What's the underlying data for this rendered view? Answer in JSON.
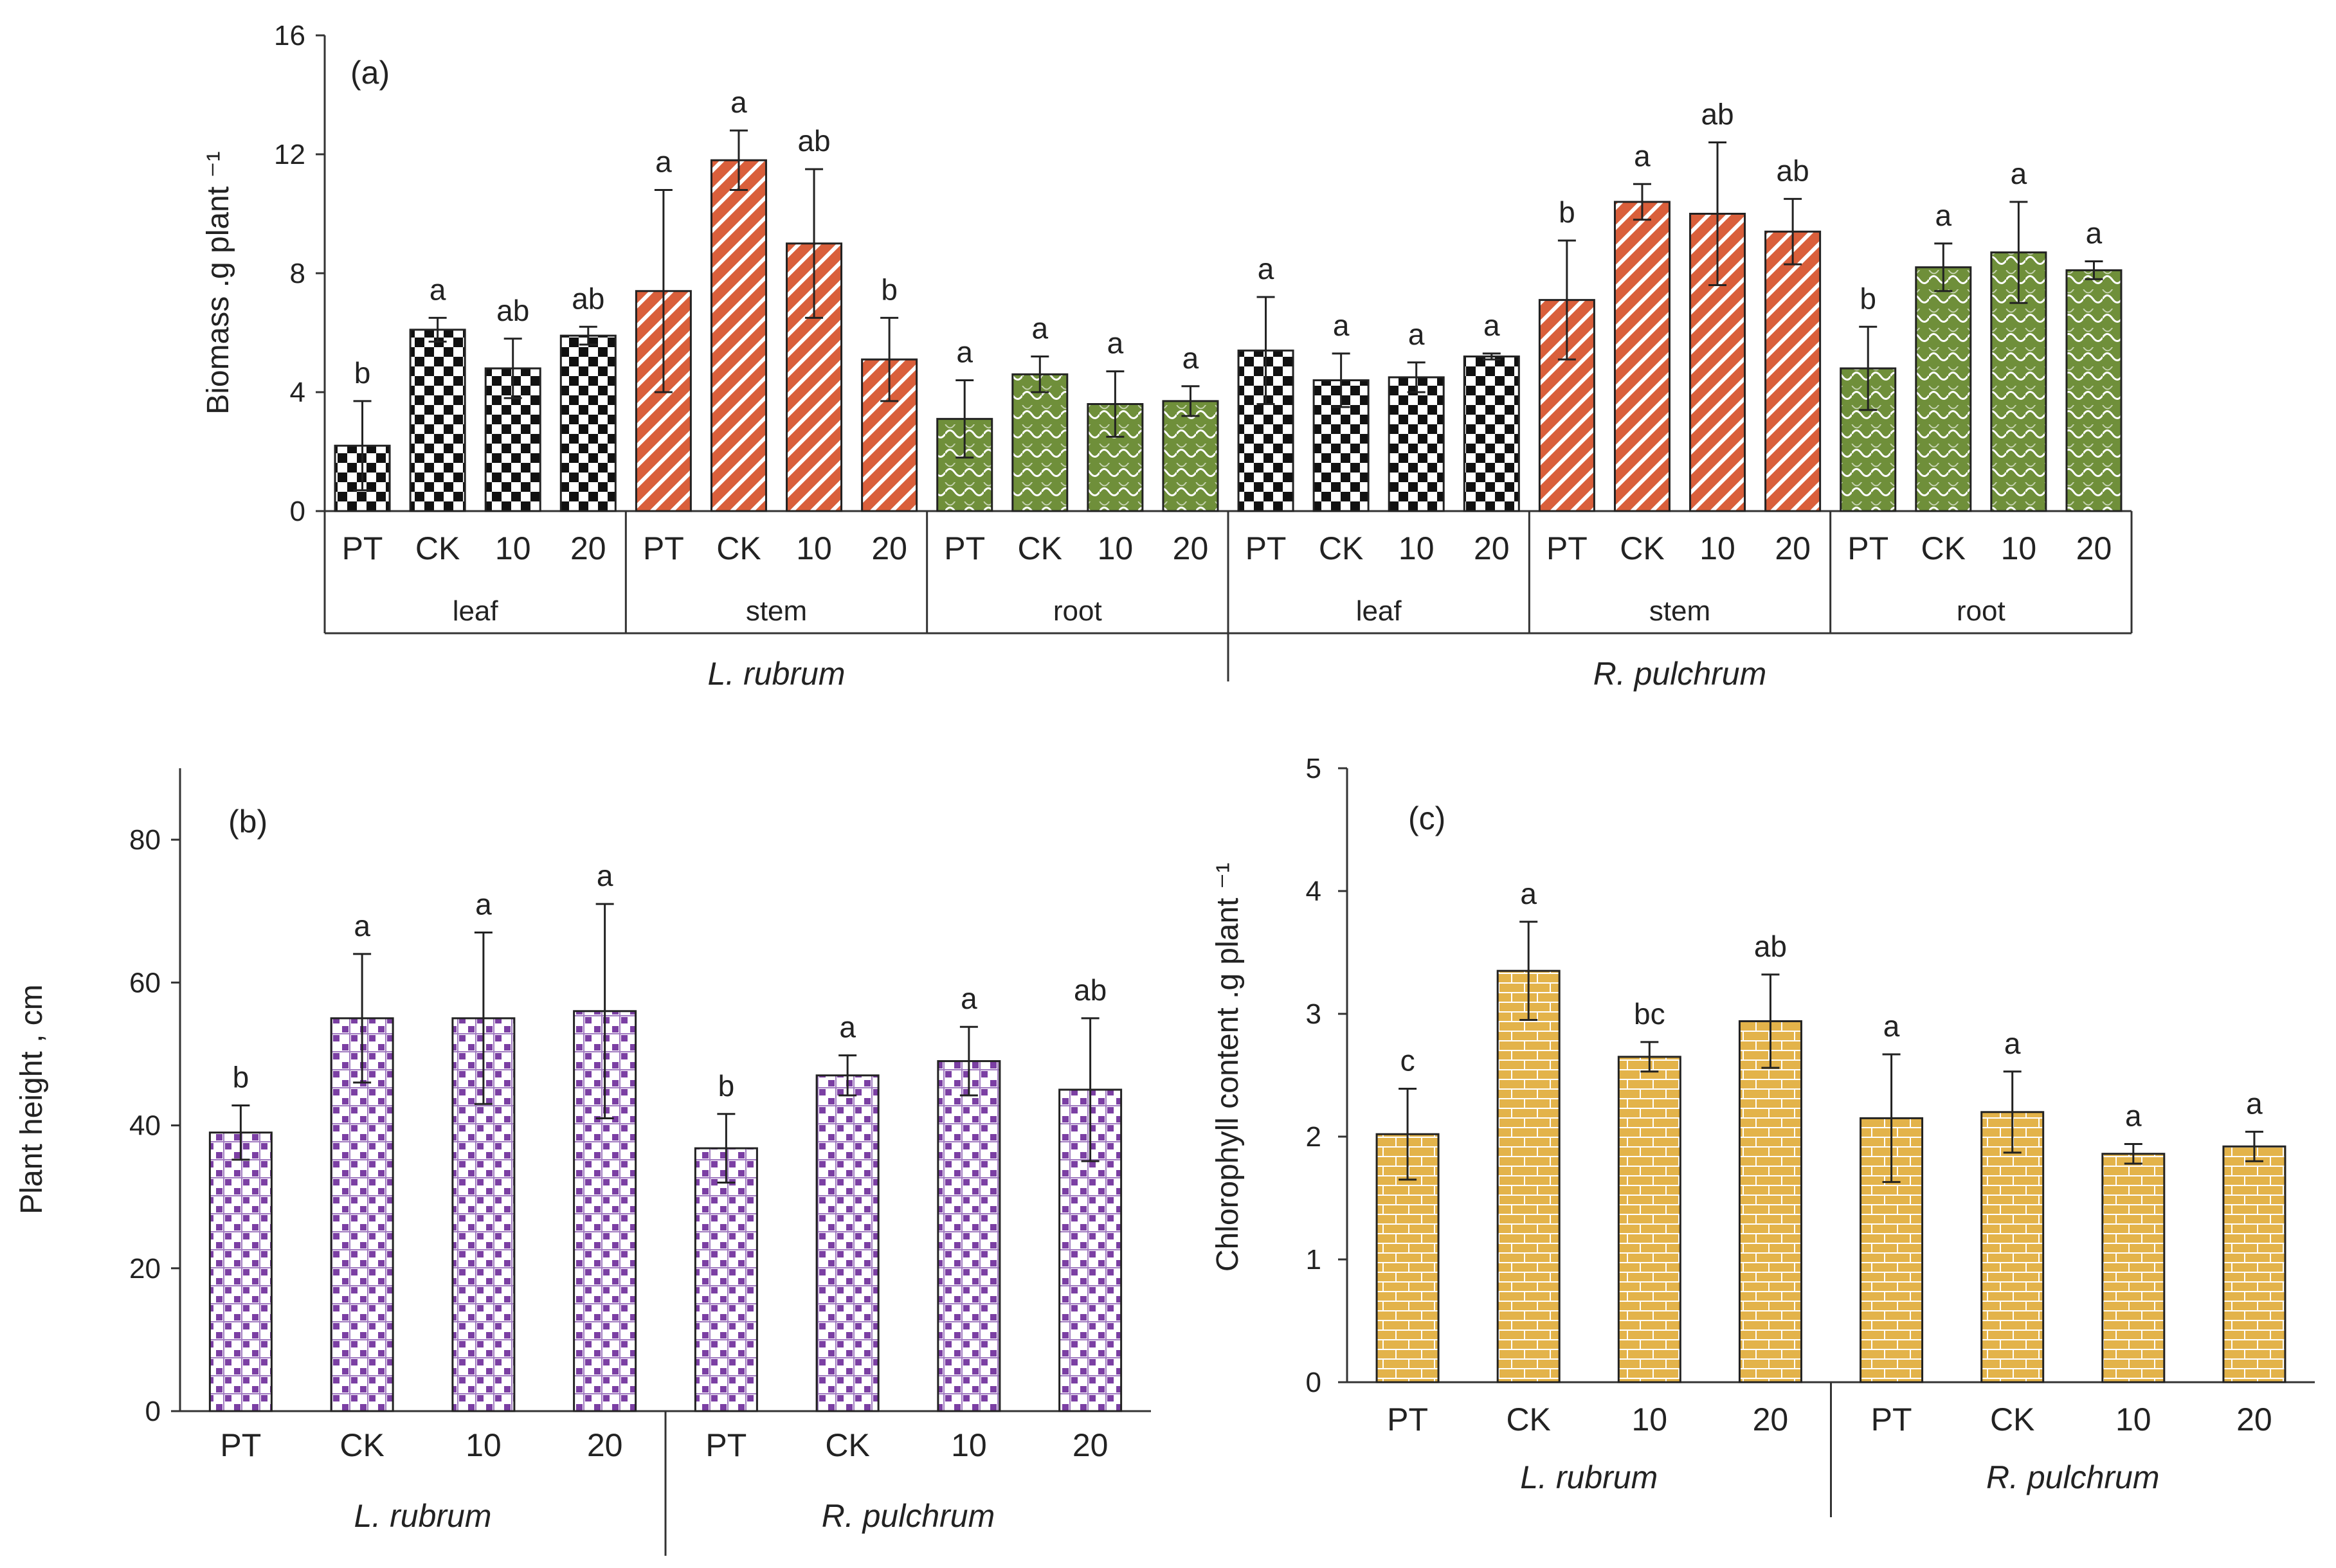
{
  "colors": {
    "leaf": "#111111",
    "stem": "#d95f3b",
    "root": "#6f8f3a",
    "height": "#7b3fa3",
    "chlorophyll": "#e3b34a"
  },
  "chart_data": [
    {
      "type": "bar",
      "panel_label": "(a)",
      "ylabel": "Biomass .g plant ⁻¹",
      "ylim": [
        0,
        16
      ],
      "yticks": [
        "0",
        "4",
        "8",
        "12",
        "16"
      ],
      "species": [
        "L. rubrum",
        "R. pulchrum"
      ],
      "groups": [
        {
          "species": "L. rubrum",
          "organ": "leaf",
          "pattern": "leaf",
          "categories": [
            "PT",
            "CK",
            "10",
            "20"
          ],
          "values": [
            2.2,
            6.1,
            4.8,
            5.9
          ],
          "errors": [
            1.5,
            0.4,
            1.0,
            0.3
          ],
          "letters": [
            "b",
            "a",
            "ab",
            "ab"
          ]
        },
        {
          "species": "L. rubrum",
          "organ": "stem",
          "pattern": "stem",
          "categories": [
            "PT",
            "CK",
            "10",
            "20"
          ],
          "values": [
            7.4,
            11.8,
            9.0,
            5.1
          ],
          "errors": [
            3.4,
            1.0,
            2.5,
            1.4
          ],
          "letters": [
            "a",
            "a",
            "ab",
            "b"
          ]
        },
        {
          "species": "L. rubrum",
          "organ": "root",
          "pattern": "root",
          "categories": [
            "PT",
            "CK",
            "10",
            "20"
          ],
          "values": [
            3.1,
            4.6,
            3.6,
            3.7
          ],
          "errors": [
            1.3,
            0.6,
            1.1,
            0.5
          ],
          "letters": [
            "a",
            "a",
            "a",
            "a"
          ]
        },
        {
          "species": "R. pulchrum",
          "organ": "leaf",
          "pattern": "leaf",
          "categories": [
            "PT",
            "CK",
            "10",
            "20"
          ],
          "values": [
            5.4,
            4.4,
            4.5,
            5.2
          ],
          "errors": [
            1.8,
            0.9,
            0.5,
            0.1
          ],
          "letters": [
            "a",
            "a",
            "a",
            "a"
          ]
        },
        {
          "species": "R. pulchrum",
          "organ": "stem",
          "pattern": "stem",
          "categories": [
            "PT",
            "CK",
            "10",
            "20"
          ],
          "values": [
            7.1,
            10.4,
            10.0,
            9.4
          ],
          "errors": [
            2.0,
            0.6,
            2.4,
            1.1
          ],
          "letters": [
            "b",
            "a",
            "ab",
            "ab"
          ]
        },
        {
          "species": "R. pulchrum",
          "organ": "root",
          "pattern": "root",
          "categories": [
            "PT",
            "CK",
            "10",
            "20"
          ],
          "values": [
            4.8,
            8.2,
            8.7,
            8.1
          ],
          "errors": [
            1.4,
            0.8,
            1.7,
            0.3
          ],
          "letters": [
            "b",
            "a",
            "a",
            "a"
          ]
        }
      ]
    },
    {
      "type": "bar",
      "panel_label": "(b)",
      "ylabel": "Plant height , cm",
      "ylim": [
        0,
        90
      ],
      "yticks": [
        "0",
        "20",
        "40",
        "60",
        "80"
      ],
      "species": [
        "L. rubrum",
        "R. pulchrum"
      ],
      "groups": [
        {
          "species": "L. rubrum",
          "pattern": "height",
          "categories": [
            "PT",
            "CK",
            "10",
            "20"
          ],
          "values": [
            39,
            55,
            55,
            56
          ],
          "errors": [
            3.8,
            9,
            12,
            15
          ],
          "letters": [
            "b",
            "a",
            "a",
            "a"
          ]
        },
        {
          "species": "R. pulchrum",
          "pattern": "height",
          "categories": [
            "PT",
            "CK",
            "10",
            "20"
          ],
          "values": [
            36.8,
            47,
            49,
            45
          ],
          "errors": [
            4.8,
            2.8,
            4.8,
            10
          ],
          "letters": [
            "b",
            "a",
            "a",
            "ab"
          ]
        }
      ]
    },
    {
      "type": "bar",
      "panel_label": "(c)",
      "ylabel": "Chlorophyll content .g plant ⁻¹",
      "ylim": [
        0,
        5
      ],
      "yticks": [
        "0",
        "1",
        "2",
        "3",
        "4",
        "5"
      ],
      "species": [
        "L. rubrum",
        "R. pulchrum"
      ],
      "groups": [
        {
          "species": "L. rubrum",
          "pattern": "chlorophyll",
          "categories": [
            "PT",
            "CK",
            "10",
            "20"
          ],
          "values": [
            2.02,
            3.35,
            2.65,
            2.94
          ],
          "errors": [
            0.37,
            0.4,
            0.12,
            0.38
          ],
          "letters": [
            "c",
            "a",
            "bc",
            "ab"
          ]
        },
        {
          "species": "R. pulchrum",
          "pattern": "chlorophyll",
          "categories": [
            "PT",
            "CK",
            "10",
            "20"
          ],
          "values": [
            2.15,
            2.2,
            1.86,
            1.92
          ],
          "errors": [
            0.52,
            0.33,
            0.08,
            0.12
          ],
          "letters": [
            "a",
            "a",
            "a",
            "a"
          ]
        }
      ]
    }
  ]
}
